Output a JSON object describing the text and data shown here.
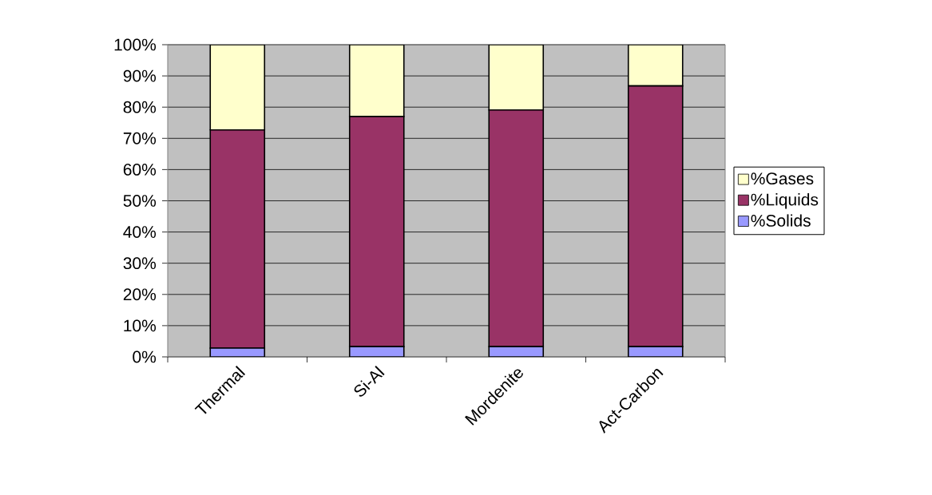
{
  "chart_data": {
    "type": "bar",
    "stacked": true,
    "categories": [
      "Thermal",
      "Si-Al",
      "Mordenite",
      "Act-Carbon"
    ],
    "series": [
      {
        "name": "%Solids",
        "color": "#9999ff",
        "values": [
          2.8,
          3.3,
          3.3,
          3.3
        ]
      },
      {
        "name": "%Liquids",
        "color": "#993366",
        "values": [
          69.9,
          73.7,
          75.8,
          83.5
        ]
      },
      {
        "name": "%Gases",
        "color": "#ffffcc",
        "values": [
          27.3,
          23.0,
          20.9,
          13.2
        ]
      }
    ],
    "ylim": [
      0,
      100
    ],
    "yticks": [
      {
        "value": 0,
        "label": "0%"
      },
      {
        "value": 10,
        "label": "10%"
      },
      {
        "value": 20,
        "label": "20%"
      },
      {
        "value": 30,
        "label": "30%"
      },
      {
        "value": 40,
        "label": "40%"
      },
      {
        "value": 50,
        "label": "50%"
      },
      {
        "value": 60,
        "label": "60%"
      },
      {
        "value": 70,
        "label": "70%"
      },
      {
        "value": 80,
        "label": "80%"
      },
      {
        "value": 90,
        "label": "90%"
      },
      {
        "value": 100,
        "label": "100%"
      }
    ],
    "grid": "y",
    "legend": "right"
  }
}
